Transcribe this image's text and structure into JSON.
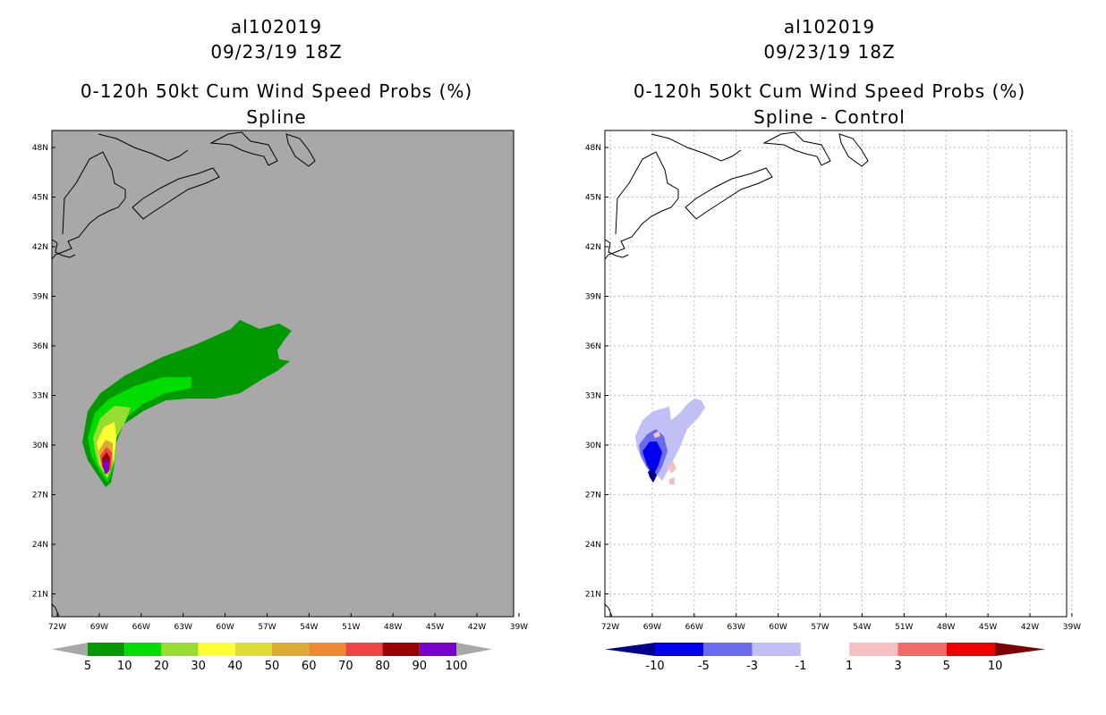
{
  "panels": [
    {
      "storm_id": "al102019",
      "datetime": "09/23/19 18Z",
      "product": "0-120h 50kt Cum Wind Speed Probs (%)",
      "subtitle": "Spline",
      "background": "#a8a8a8",
      "colorbar": {
        "labels": [
          "5",
          "10",
          "20",
          "30",
          "40",
          "50",
          "60",
          "70",
          "80",
          "90",
          "100"
        ],
        "colors": [
          "#a8a8a8",
          "#009900",
          "#00dd00",
          "#99dd33",
          "#ffff33",
          "#dddd33",
          "#ddaa33",
          "#ee8833",
          "#ee4444",
          "#990000",
          "#7700cc",
          "#a8a8a8"
        ]
      }
    },
    {
      "storm_id": "al102019",
      "datetime": "09/23/19 18Z",
      "product": "0-120h 50kt Cum Wind Speed Probs (%)",
      "subtitle": "Spline - Control",
      "background": "#ffffff",
      "colorbar": {
        "labels": [
          "-10",
          "-5",
          "-3",
          "-1",
          "1",
          "3",
          "5",
          "10"
        ],
        "colors": [
          "#00008b",
          "#0000ee",
          "#6a6aee",
          "#c0c0f5",
          "#ffffff",
          "#f7c0c0",
          "#f26a6a",
          "#ee0000",
          "#7d0000"
        ]
      }
    }
  ],
  "axes": {
    "x_ticks": [
      "72W",
      "69W",
      "66W",
      "63W",
      "60W",
      "57W",
      "54W",
      "51W",
      "48W",
      "45W",
      "42W",
      "39W"
    ],
    "y_ticks": [
      "48N",
      "45N",
      "42N",
      "39N",
      "36N",
      "33N",
      "30N",
      "27N",
      "24N",
      "21N"
    ]
  }
}
